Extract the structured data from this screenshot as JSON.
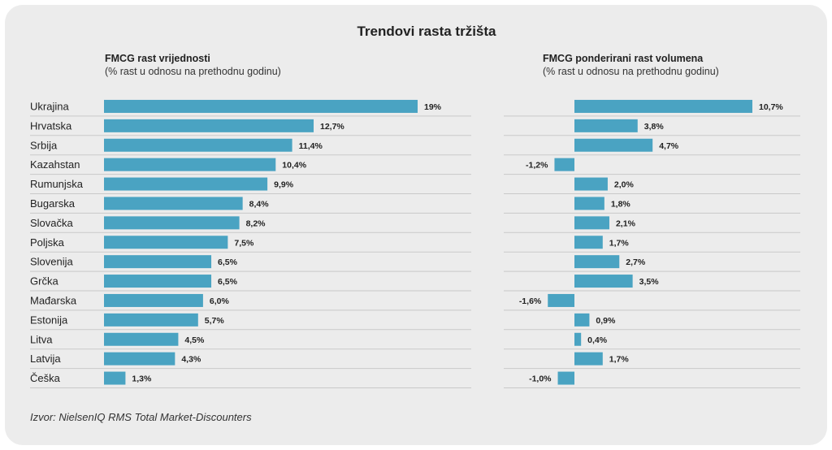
{
  "title": "Trendovi rasta tržišta",
  "source": "Izvor: NielsenIQ RMS Total Market-Discounters",
  "colors": {
    "bar": "#4aa3c2",
    "separator": "#c9c9c9",
    "background": "#ececec"
  },
  "chart_data": [
    {
      "type": "bar",
      "orientation": "horizontal",
      "title": "FMCG rast vrijednosti",
      "subtitle": "(% rast u odnosu na prethodnu godinu)",
      "categories": [
        "Ukrajina",
        "Hrvatska",
        "Srbija",
        "Kazahstan",
        "Rumunjska",
        "Bugarska",
        "Slovačka",
        "Poljska",
        "Slovenija",
        "Grčka",
        "Mađarska",
        "Estonija",
        "Litva",
        "Latvija",
        "Češka"
      ],
      "values": [
        19,
        12.7,
        11.4,
        10.4,
        9.9,
        8.4,
        8.2,
        7.5,
        6.5,
        6.5,
        6.0,
        5.7,
        4.5,
        4.3,
        1.3
      ],
      "labels": [
        "19%",
        "12,7%",
        "11,4%",
        "10,4%",
        "9,9%",
        "8,4%",
        "8,2%",
        "7,5%",
        "6,5%",
        "6,5%",
        "6,0%",
        "5,7%",
        "4,5%",
        "4,3%",
        "1,3%"
      ],
      "xlim": [
        0,
        19
      ]
    },
    {
      "type": "bar",
      "orientation": "horizontal",
      "title": "FMCG ponderirani rast volumena",
      "subtitle": "(% rast u odnosu na prethodnu godinu)",
      "categories": [
        "Ukrajina",
        "Hrvatska",
        "Srbija",
        "Kazahstan",
        "Rumunjska",
        "Bugarska",
        "Slovačka",
        "Poljska",
        "Slovenija",
        "Grčka",
        "Mađarska",
        "Estonija",
        "Litva",
        "Latvija",
        "Češka"
      ],
      "values": [
        10.7,
        3.8,
        4.7,
        -1.2,
        2.0,
        1.8,
        2.1,
        1.7,
        2.7,
        3.5,
        -1.6,
        0.9,
        0.4,
        1.7,
        -1.0
      ],
      "labels": [
        "10,7%",
        "3,8%",
        "4,7%",
        "-1,2%",
        "2,0%",
        "1,8%",
        "2,1%",
        "1,7%",
        "2,7%",
        "3,5%",
        "-1,6%",
        "0,9%",
        "0,4%",
        "1,7%",
        "-1,0%"
      ],
      "xlim": [
        -1.6,
        10.7
      ]
    }
  ]
}
